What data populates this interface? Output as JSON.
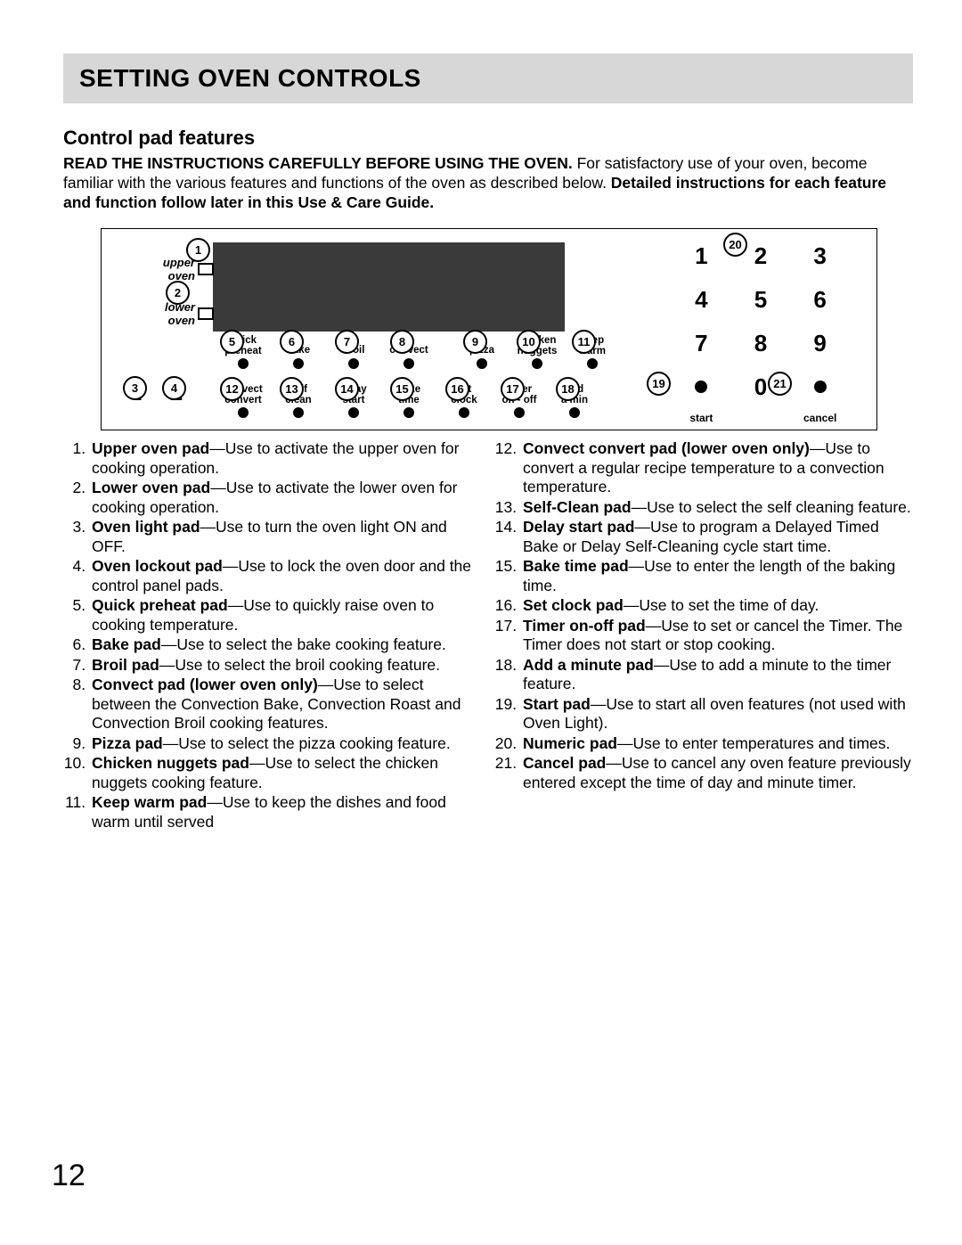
{
  "page_number": "12",
  "title": "SETTING OVEN CONTROLS",
  "subheading": "Control pad features",
  "intro_bold1": "READ THE INSTRUCTIONS CAREFULLY BEFORE USING THE OVEN.",
  "intro_mid": " For satisfactory use of your oven, become familiar with the various features and functions of the oven as described below. ",
  "intro_bold2": "Detailed instructions for each feature and function follow later in this Use & Care Guide.",
  "diagram": {
    "upper_oven": "upper\noven",
    "lower_oven": "lower\noven",
    "row1": {
      "quick_preheat": "quick\npreheat",
      "bake": "bake",
      "broil": "broil",
      "convect": "convect",
      "pizza": "pizza",
      "chicken_nuggets": "chicken\nnuggets",
      "keep_warm": "keep\nwarm"
    },
    "row2": {
      "convect_convert": "convect\nconvert",
      "self_clean": "self\nclean",
      "delay_start": "delay\nstart",
      "bake_time": "bake\ntime",
      "set_clock": "set\nclock",
      "timer_onoff": "timer\non - off",
      "add_amin": "add\na min"
    },
    "kp_start": "start",
    "kp_cancel": "cancel",
    "kp": [
      "1",
      "2",
      "3",
      "4",
      "5",
      "6",
      "7",
      "8",
      "9",
      "0"
    ]
  },
  "callouts": [
    "1",
    "2",
    "3",
    "4",
    "5",
    "6",
    "7",
    "8",
    "9",
    "10",
    "11",
    "12",
    "13",
    "14",
    "15",
    "16",
    "17",
    "18",
    "19",
    "20",
    "21"
  ],
  "features_left": [
    {
      "t": "Upper oven pad",
      "d": "—Use to activate the upper oven for cooking operation."
    },
    {
      "t": "Lower oven pad",
      "d": "—Use to activate the lower oven for cooking operation."
    },
    {
      "t": "Oven light pad",
      "d": "—Use to turn the oven light ON and OFF."
    },
    {
      "t": "Oven lockout pad",
      "d": "—Use to lock the oven door and the control panel pads."
    },
    {
      "t": "Quick preheat pad",
      "d": "—Use to quickly raise oven to cooking temperature."
    },
    {
      "t": "Bake pad",
      "d": "—Use to select the bake cooking feature."
    },
    {
      "t": "Broil pad",
      "d": "—Use to select the broil cooking feature."
    },
    {
      "t": "Convect pad (lower oven only)",
      "d": "—Use to select between the Convection Bake, Convection Roast and Convection Broil cooking features."
    },
    {
      "t": "Pizza pad",
      "d": "—Use to select the pizza cooking feature."
    },
    {
      "t": "Chicken nuggets pad",
      "d": "—Use to select the chicken nuggets cooking feature."
    },
    {
      "t": "Keep warm pad",
      "d": "—Use to keep the dishes and food warm until served"
    }
  ],
  "features_right": [
    {
      "t": "Convect convert pad (lower oven only)",
      "d": "—Use to convert a regular recipe temperature to a convection temperature."
    },
    {
      "t": "Self-Clean pad",
      "d": "—Use to select the self cleaning feature."
    },
    {
      "t": "Delay start pad",
      "d": "—Use to program a Delayed Timed Bake or Delay Self-Cleaning cycle start time."
    },
    {
      "t": "Bake time pad",
      "d": "—Use to enter the length of the baking time."
    },
    {
      "t": "Set clock pad",
      "d": "—Use to set the time of day."
    },
    {
      "t": "Timer on-off pad",
      "d": "—Use to set or cancel the Timer. The Timer does not start or stop cooking."
    },
    {
      "t": "Add a minute pad",
      "d": "—Use to add a minute to the timer feature."
    },
    {
      "t": "Start pad",
      "d": "—Use to start all oven features (not used with Oven Light)."
    },
    {
      "t": "Numeric pad",
      "d": "—Use to enter temperatures and times."
    },
    {
      "t": "Cancel pad",
      "d": "—Use to cancel any oven feature previously entered except the time of day and minute timer."
    }
  ]
}
